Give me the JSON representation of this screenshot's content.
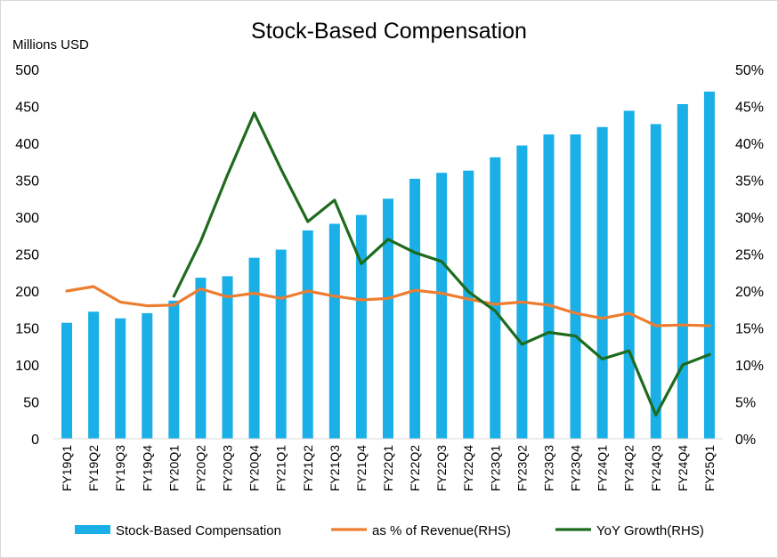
{
  "chart_data": {
    "type": "bar",
    "title": "Stock-Based Compensation",
    "ylabel": "Millions USD",
    "ylim": [
      0,
      500
    ],
    "y2lim": [
      0,
      0.5
    ],
    "yticks": [
      "0",
      "50",
      "100",
      "150",
      "200",
      "250",
      "300",
      "350",
      "400",
      "450",
      "500"
    ],
    "y2ticks": [
      "0%",
      "5%",
      "10%",
      "15%",
      "20%",
      "25%",
      "30%",
      "35%",
      "40%",
      "45%",
      "50%"
    ],
    "categories": [
      "FY19Q1",
      "FY19Q2",
      "FY19Q3",
      "FY19Q4",
      "FY20Q1",
      "FY20Q2",
      "FY20Q3",
      "FY20Q4",
      "FY21Q1",
      "FY21Q2",
      "FY21Q3",
      "FY21Q4",
      "FY22Q1",
      "FY22Q2",
      "FY22Q3",
      "FY22Q4",
      "FY23Q1",
      "FY23Q2",
      "FY23Q3",
      "FY23Q4",
      "FY24Q1",
      "FY24Q2",
      "FY24Q3",
      "FY24Q4",
      "FY25Q1"
    ],
    "series": [
      {
        "name": "Stock-Based Compensation",
        "type": "bar",
        "axis": "left",
        "color": "#1AAFE6",
        "values": [
          157,
          172,
          163,
          170,
          187,
          218,
          220,
          245,
          256,
          282,
          291,
          303,
          325,
          352,
          360,
          363,
          381,
          397,
          412,
          412,
          422,
          444,
          426,
          453,
          470
        ]
      },
      {
        "name": "as % of Revenue(RHS)",
        "type": "line",
        "axis": "right",
        "color": "#ED7D31",
        "values": [
          0.2,
          0.206,
          0.185,
          0.18,
          0.181,
          0.203,
          0.192,
          0.197,
          0.19,
          0.2,
          0.193,
          0.188,
          0.19,
          0.201,
          0.197,
          0.189,
          0.182,
          0.185,
          0.181,
          0.17,
          0.163,
          0.17,
          0.153,
          0.154,
          0.153
        ]
      },
      {
        "name": "YoY Growth(RHS)",
        "type": "line",
        "axis": "right",
        "color": "#1E6B1E",
        "values": [
          null,
          null,
          null,
          null,
          0.193,
          0.267,
          0.357,
          0.441,
          0.365,
          0.294,
          0.323,
          0.237,
          0.27,
          0.252,
          0.24,
          0.199,
          0.173,
          0.128,
          0.144,
          0.139,
          0.108,
          0.119,
          0.032,
          0.1,
          0.114
        ]
      }
    ],
    "grid": false,
    "legend_position": "bottom"
  }
}
